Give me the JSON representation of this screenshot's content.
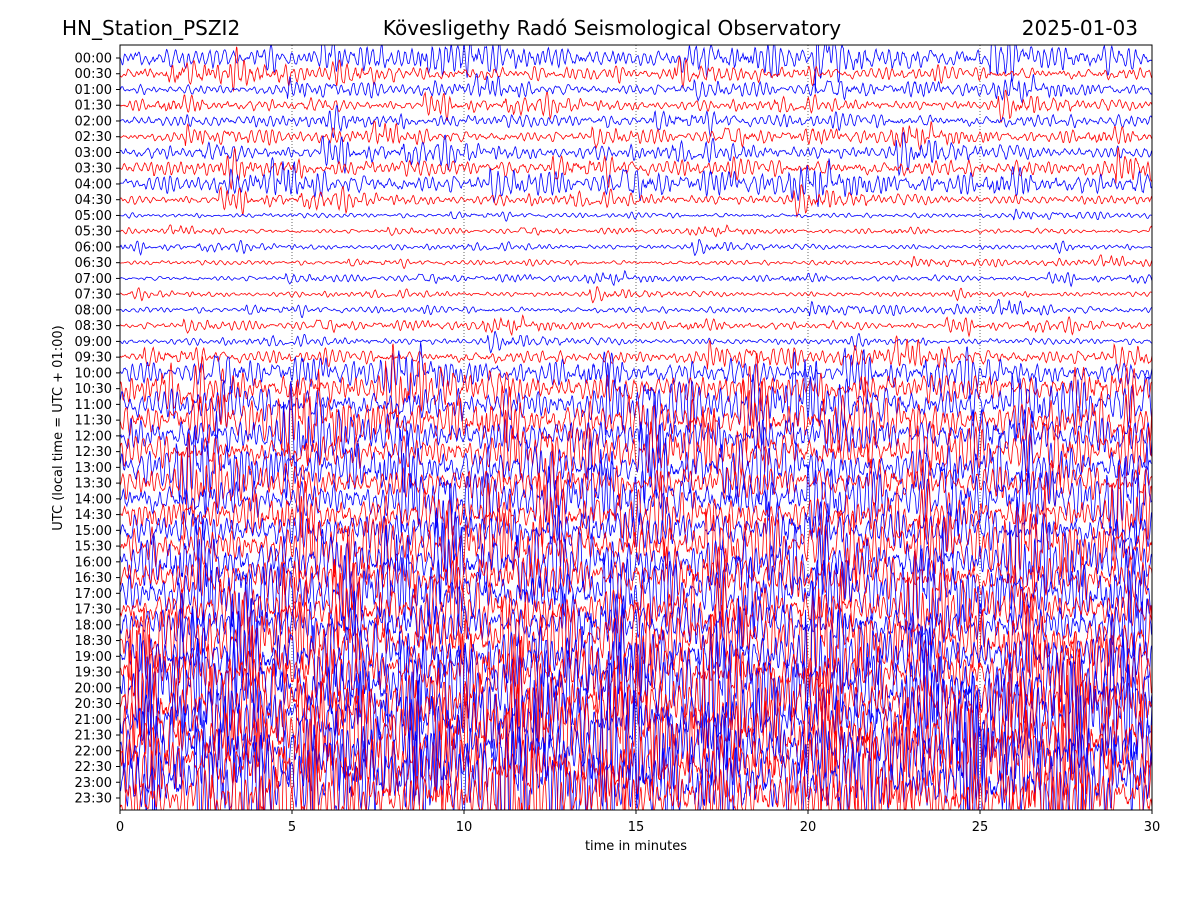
{
  "header": {
    "station": "HN_Station_PSZI2",
    "observatory": "Kövesligethy Radó Seismological Observatory",
    "date": "2025-01-03"
  },
  "chart_data": {
    "type": "line",
    "subtype": "helicorder",
    "title": "Kövesligethy Radó Seismological Observatory",
    "xlabel": "time in minutes",
    "ylabel": "UTC (local time = UTC + 01:00)",
    "xlim": [
      0,
      30
    ],
    "x_ticks": [
      "0",
      "5",
      "10",
      "15",
      "20",
      "25",
      "30"
    ],
    "grid": "vertical dotted at x ticks",
    "colors": {
      "even_rows": "#0000ff",
      "odd_rows": "#ff0000"
    },
    "rows": [
      "00:00",
      "00:30",
      "01:00",
      "01:30",
      "02:00",
      "02:30",
      "03:00",
      "03:30",
      "04:00",
      "04:30",
      "05:00",
      "05:30",
      "06:00",
      "06:30",
      "07:00",
      "07:30",
      "08:00",
      "08:30",
      "09:00",
      "09:30",
      "10:00",
      "10:30",
      "11:00",
      "11:30",
      "12:00",
      "12:30",
      "13:00",
      "13:30",
      "14:00",
      "14:30",
      "15:00",
      "15:30",
      "16:00",
      "16:30",
      "17:00",
      "17:30",
      "18:00",
      "18:30",
      "19:00",
      "19:30",
      "20:00",
      "20:30",
      "21:00",
      "21:30",
      "22:00",
      "22:30",
      "23:00",
      "23:30"
    ],
    "relative_amplitude": [
      6,
      4,
      3,
      3,
      4,
      3,
      4,
      5,
      5,
      3,
      1.5,
      1.2,
      1.5,
      1.5,
      1.5,
      1.5,
      2,
      2,
      2,
      4,
      6,
      9,
      10,
      10,
      11,
      10,
      11,
      10,
      11,
      10,
      12,
      12,
      13,
      13,
      13,
      12,
      13,
      14,
      15,
      16,
      18,
      18,
      20,
      20,
      20,
      20,
      20,
      18
    ]
  }
}
